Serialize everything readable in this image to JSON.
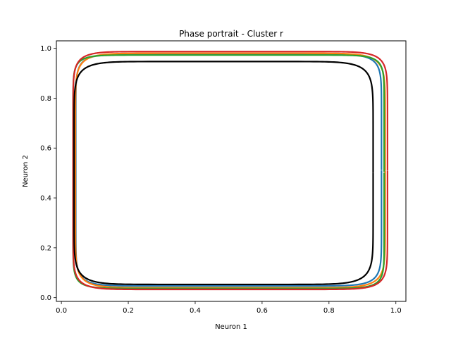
{
  "chart_data": {
    "type": "line",
    "title": "Phase portrait - Cluster r",
    "xlabel": "Neuron 1",
    "ylabel": "Neuron 2",
    "xlim": [
      -0.015,
      1.03
    ],
    "ylim": [
      -0.015,
      1.03
    ],
    "xticks": [
      "0.0",
      "0.2",
      "0.4",
      "0.6",
      "0.8",
      "1.0"
    ],
    "yticks": [
      "0.0",
      "0.2",
      "0.4",
      "0.6",
      "0.8",
      "1.0"
    ],
    "grid": false,
    "legend": false,
    "series": [
      {
        "color": "#1f77b4",
        "cx": 0.5,
        "cy": 0.512,
        "ax": 0.457,
        "ay": 0.465,
        "n": 12
      },
      {
        "color": "#ff7f0e",
        "cx": 0.505,
        "cy": 0.51,
        "ax": 0.463,
        "ay": 0.47,
        "n": 11
      },
      {
        "color": "#2ca02c",
        "cx": 0.5,
        "cy": 0.505,
        "ax": 0.465,
        "ay": 0.468,
        "n": 14
      },
      {
        "color": "#d62728",
        "cx": 0.505,
        "cy": 0.51,
        "ax": 0.47,
        "ay": 0.477,
        "n": 12
      },
      {
        "color": "#000000",
        "cx": 0.485,
        "cy": 0.5,
        "ax": 0.447,
        "ay": 0.447,
        "n": 10
      }
    ]
  }
}
